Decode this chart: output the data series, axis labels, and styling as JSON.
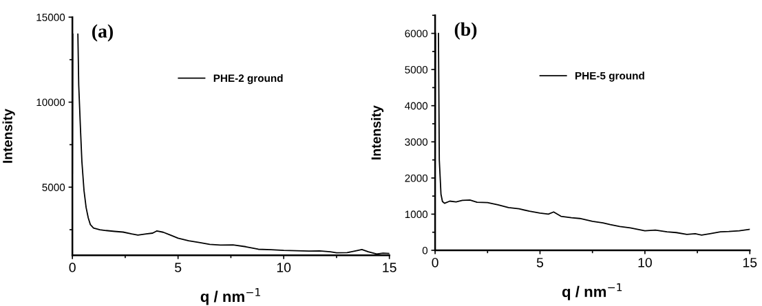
{
  "chart_data": [
    {
      "type": "line",
      "xlabel": "q / nm$^{−1}$",
      "ylabel": "Intensity",
      "xlim": [
        0,
        15
      ],
      "ylim": [
        1000,
        15000
      ],
      "xticks": [
        0,
        5,
        10,
        15
      ],
      "yticks": [
        5000,
        10000,
        15000
      ],
      "legend": "top",
      "grid": false,
      "annotations": [
        "(a)"
      ],
      "series": [
        {
          "name": "PHE-2 ground",
          "color": "#000000",
          "x": [
            0.0,
            0.02,
            0.1,
            0.26,
            0.3,
            0.38,
            0.45,
            0.55,
            0.65,
            0.75,
            0.85,
            1.0,
            1.3,
            1.6,
            2.0,
            2.4,
            2.8,
            3.1,
            3.5,
            3.8,
            4.0,
            4.3,
            4.6,
            5.0,
            5.5,
            6.0,
            6.5,
            7.0,
            7.6,
            8.2,
            8.8,
            9.4,
            10.0,
            10.6,
            11.2,
            11.7,
            12.2,
            12.5,
            13.0,
            13.4,
            13.7,
            14.0,
            14.4,
            14.7,
            15.0
          ],
          "values": [
            5800,
            14000,
            null,
            14000,
            11000,
            8500,
            6500,
            4800,
            3800,
            3200,
            2800,
            2600,
            2500,
            2450,
            2400,
            2360,
            2250,
            2180,
            2250,
            2300,
            2430,
            2350,
            2200,
            2000,
            1850,
            1750,
            1640,
            1600,
            1610,
            1500,
            1350,
            1320,
            1280,
            1260,
            1240,
            1250,
            1200,
            1140,
            1150,
            1250,
            1330,
            1200,
            1070,
            1120,
            1100
          ]
        }
      ]
    },
    {
      "type": "line",
      "xlabel": "q / nm$^{−1}$",
      "ylabel": "Intensity",
      "xlim": [
        0,
        15
      ],
      "ylim": [
        0,
        6500
      ],
      "xticks": [
        0,
        5,
        10,
        15
      ],
      "yticks": [
        0,
        1000,
        2000,
        3000,
        4000,
        5000,
        6000
      ],
      "legend": "top",
      "grid": false,
      "annotations": [
        "(b)"
      ],
      "series": [
        {
          "name": "PHE-5 ground",
          "color": "#000000",
          "x": [
            0.0,
            0.02,
            0.08,
            0.16,
            0.2,
            0.28,
            0.35,
            0.45,
            0.7,
            1.0,
            1.3,
            1.66,
            2.0,
            2.5,
            3.0,
            3.5,
            4.0,
            4.5,
            5.0,
            5.4,
            5.65,
            6.0,
            6.5,
            6.9,
            7.5,
            8.0,
            8.35,
            8.8,
            9.3,
            10.0,
            10.5,
            11.05,
            11.5,
            12.0,
            12.4,
            12.7,
            13.1,
            13.6,
            14.0,
            14.5,
            15.0
          ],
          "values": [
            2000,
            6000,
            null,
            6000,
            2500,
            1550,
            1350,
            1300,
            1360,
            1340,
            1380,
            1390,
            1330,
            1320,
            1260,
            1180,
            1150,
            1080,
            1030,
            1000,
            1060,
            940,
            900,
            880,
            800,
            760,
            710,
            660,
            620,
            540,
            560,
            510,
            490,
            440,
            460,
            420,
            460,
            510,
            520,
            540,
            580
          ]
        }
      ]
    }
  ]
}
